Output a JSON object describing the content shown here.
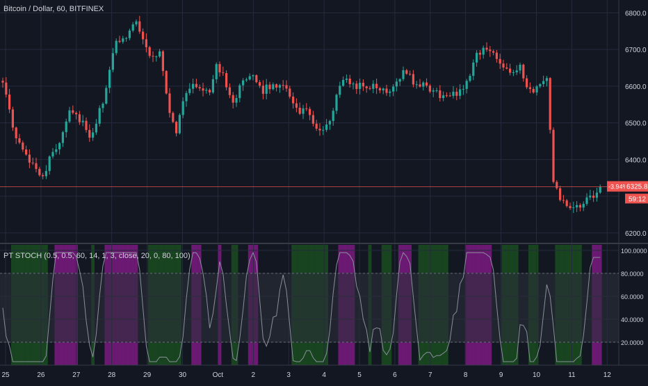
{
  "window": {
    "symbol_legend": "Bitcoin / Dollar, 60, BITFINEX",
    "indicator_legend": "PT STOCH (0.5, 0.5, 60, 14, 1, 3, close, 20, 0, 80, 100)"
  },
  "colors": {
    "background": "#131722",
    "grid": "#262b3e",
    "axis_text": "#d1d4dc",
    "candle_up": "#26a69a",
    "candle_down": "#ef5350",
    "last_price_label": "#ef5350",
    "stoch_line": "#8a8f9c",
    "band_fill": "#2a2e39",
    "oversold_bar": "#1b5e20",
    "overbought_bar": "#b71cb7"
  },
  "chart_data": [
    {
      "type": "candlestick",
      "title": "Bitcoin / Dollar, 60, BITFINEX",
      "xlabel": "",
      "ylabel": "",
      "ylim": [
        6175,
        6835
      ],
      "x_tick_labels": [
        "25",
        "26",
        "27",
        "28",
        "29",
        "30",
        "Oct",
        "2",
        "3",
        "4",
        "5",
        "6",
        "7",
        "8",
        "9",
        "10",
        "11",
        "12"
      ],
      "y_tick_labels": [
        "6800.0",
        "6700.0",
        "6600.0",
        "6500.0",
        "6400.0",
        "6300.0",
        "6200.0"
      ],
      "y_ticks": [
        6800,
        6700,
        6600,
        6500,
        6400,
        6300,
        6200
      ],
      "last_price": 6325.8,
      "last_price_label": "6325.8",
      "change_label": "-3.94%",
      "countdown_label": "59:12",
      "grid": true,
      "anchors": [
        [
          0,
          6620
        ],
        [
          3,
          6480
        ],
        [
          6,
          6420
        ],
        [
          10,
          6380
        ],
        [
          12,
          6355
        ],
        [
          15,
          6420
        ],
        [
          17,
          6450
        ],
        [
          20,
          6540
        ],
        [
          24,
          6500
        ],
        [
          26,
          6450
        ],
        [
          28,
          6500
        ],
        [
          30,
          6560
        ],
        [
          34,
          6720
        ],
        [
          37,
          6740
        ],
        [
          40,
          6780
        ],
        [
          42,
          6730
        ],
        [
          44,
          6680
        ],
        [
          47,
          6690
        ],
        [
          50,
          6530
        ],
        [
          52,
          6480
        ],
        [
          55,
          6590
        ],
        [
          58,
          6600
        ],
        [
          62,
          6590
        ],
        [
          64,
          6650
        ],
        [
          66,
          6630
        ],
        [
          69,
          6560
        ],
        [
          72,
          6610
        ],
        [
          75,
          6620
        ],
        [
          78,
          6590
        ],
        [
          81,
          6600
        ],
        [
          84,
          6610
        ],
        [
          87,
          6560
        ],
        [
          89,
          6520
        ],
        [
          91,
          6540
        ],
        [
          94,
          6480
        ],
        [
          96,
          6470
        ],
        [
          99,
          6530
        ],
        [
          101,
          6610
        ],
        [
          104,
          6610
        ],
        [
          107,
          6600
        ],
        [
          110,
          6600
        ],
        [
          113,
          6590
        ],
        [
          116,
          6590
        ],
        [
          119,
          6630
        ],
        [
          121,
          6640
        ],
        [
          124,
          6600
        ],
        [
          127,
          6600
        ],
        [
          130,
          6580
        ],
        [
          133,
          6570
        ],
        [
          136,
          6580
        ],
        [
          139,
          6610
        ],
        [
          142,
          6690
        ],
        [
          144,
          6700
        ],
        [
          147,
          6690
        ],
        [
          150,
          6660
        ],
        [
          152,
          6640
        ],
        [
          155,
          6650
        ],
        [
          157,
          6590
        ],
        [
          159,
          6580
        ],
        [
          161,
          6610
        ],
        [
          163,
          6620
        ],
        [
          165,
          6330
        ],
        [
          168,
          6280
        ],
        [
          171,
          6260
        ],
        [
          174,
          6280
        ],
        [
          177,
          6300
        ],
        [
          179,
          6325
        ]
      ]
    },
    {
      "type": "line",
      "title": "PT STOCH (0.5, 0.5, 60, 14, 1, 3, close, 20, 0, 80, 100)",
      "xlabel": "",
      "ylabel": "",
      "ylim": [
        0,
        100
      ],
      "y_tick_labels": [
        "100.0000",
        "80.0000",
        "60.0000",
        "40.0000",
        "20.0000"
      ],
      "y_ticks": [
        100,
        80,
        60,
        40,
        20
      ],
      "band_upper": 80,
      "band_lower": 20,
      "overbought_level": 80,
      "oversold_level": 20,
      "grid": true
    }
  ]
}
